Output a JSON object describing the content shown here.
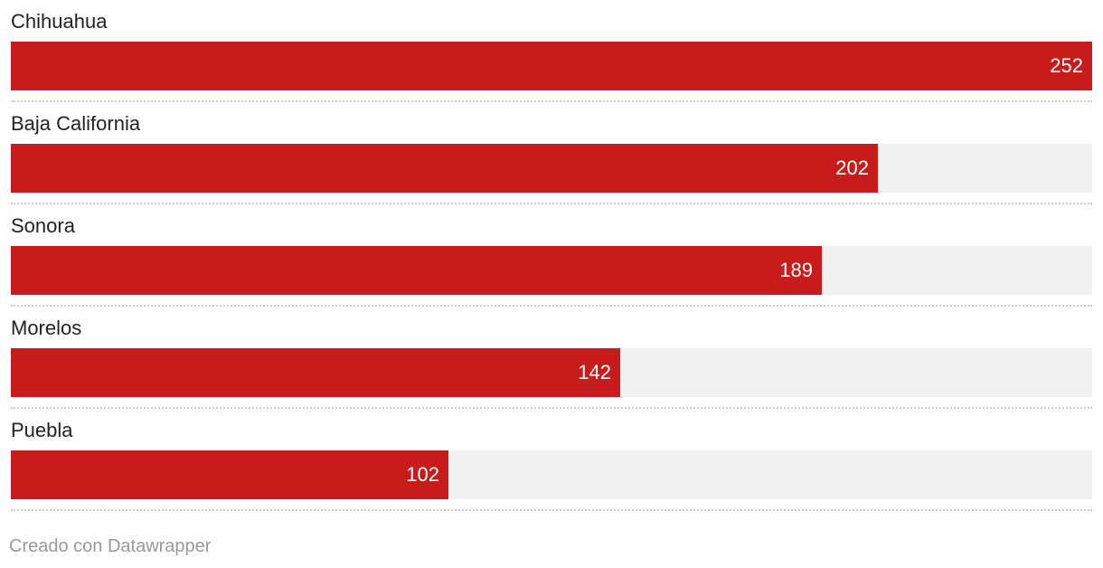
{
  "chart_data": {
    "type": "bar",
    "orientation": "horizontal",
    "categories": [
      "Chihuahua",
      "Baja California",
      "Sonora",
      "Morelos",
      "Puebla"
    ],
    "values": [
      252,
      202,
      189,
      142,
      102
    ],
    "xlim": [
      0,
      252
    ],
    "value_labels": true,
    "grid": false,
    "legend": "none"
  },
  "colors": {
    "bar": "#c81c1c",
    "track": "#f1f1f1"
  },
  "footer": {
    "credit": "Creado con Datawrapper"
  }
}
